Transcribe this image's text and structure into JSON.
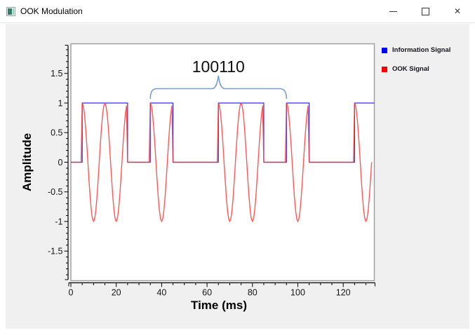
{
  "window": {
    "title": "OOK Modulation",
    "controls": {
      "minimize": "minimize",
      "maximize": "maximize",
      "close_glyph": "✕"
    }
  },
  "legend": {
    "items": [
      {
        "label": "Information Signal",
        "color": "#0000ff"
      },
      {
        "label": "OOK Signal",
        "color": "#ff0000"
      }
    ]
  },
  "chart_data": {
    "type": "line",
    "annotation": "100110",
    "xlabel": "Time (ms)",
    "ylabel": "Amplitude",
    "xlim": [
      0,
      133.7
    ],
    "ylim": [
      -2,
      2
    ],
    "x_major_ticks": [
      0,
      20,
      40,
      60,
      80,
      100,
      120
    ],
    "x_minor_step_ms": 5,
    "y_major_ticks": [
      1.5,
      1,
      0.5,
      0,
      -0.5,
      -1,
      -1.5
    ],
    "y_major_tick_labels": [
      "1.5",
      "1",
      "0.5",
      "0",
      "-0.5",
      "-1",
      "-1.5"
    ],
    "y_minor_step": 0.1,
    "grid": "off",
    "legend_position": "top-right",
    "bit_pattern": "100110",
    "bits_shown": [
      1,
      1,
      0,
      1,
      0,
      0,
      1,
      1,
      0,
      1,
      0,
      0,
      1
    ],
    "first_bit_start_ms": 5,
    "bit_duration_ms": 10,
    "carrier_period_ms": 10,
    "carrier_amplitude": 1,
    "ook_signal_end_ms": 132.5,
    "sample_step_ms": 0.5,
    "brace_span_ms": [
      35,
      95
    ],
    "brace_color": "#7b9cd0",
    "series": [
      {
        "name": "Information Signal",
        "color": "#0000ff",
        "kind": "square-wave"
      },
      {
        "name": "OOK Signal",
        "color": "#ff0000",
        "kind": "gated-cosine"
      }
    ]
  }
}
